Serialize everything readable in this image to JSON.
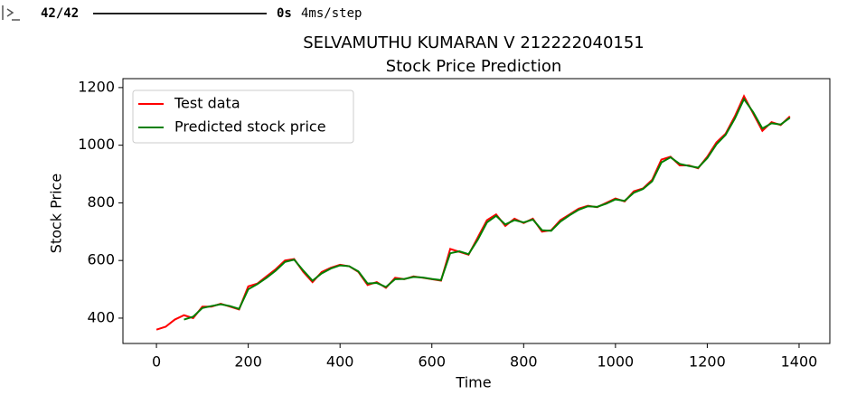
{
  "console": {
    "steps": "42/42",
    "time": "0s",
    "rate": "4ms/step"
  },
  "chart_data": {
    "type": "line",
    "title": "SELVAMUTHU KUMARAN V 212222040151",
    "subtitle": "Stock Price Prediction",
    "x_label": "Time",
    "y_label": "Stock Price",
    "x": [
      0,
      20,
      40,
      60,
      80,
      100,
      120,
      140,
      160,
      180,
      200,
      220,
      240,
      260,
      280,
      300,
      320,
      340,
      360,
      380,
      400,
      420,
      440,
      460,
      480,
      500,
      520,
      540,
      560,
      580,
      600,
      620,
      640,
      660,
      680,
      700,
      720,
      740,
      760,
      780,
      800,
      820,
      840,
      860,
      880,
      900,
      920,
      940,
      960,
      980,
      1000,
      1020,
      1040,
      1060,
      1080,
      1100,
      1120,
      1140,
      1160,
      1180,
      1200,
      1220,
      1240,
      1260,
      1280,
      1300,
      1320,
      1340,
      1360,
      1380
    ],
    "series": [
      {
        "name": "Test data",
        "color": "#ff0000",
        "values": [
          360,
          370,
          395,
          410,
          400,
          440,
          440,
          450,
          440,
          430,
          510,
          520,
          545,
          570,
          600,
          605,
          560,
          525,
          560,
          575,
          585,
          580,
          560,
          515,
          525,
          505,
          540,
          535,
          545,
          540,
          535,
          530,
          640,
          630,
          620,
          680,
          740,
          760,
          720,
          745,
          730,
          745,
          700,
          705,
          740,
          760,
          780,
          790,
          785,
          800,
          815,
          805,
          840,
          850,
          880,
          950,
          960,
          930,
          930,
          920,
          960,
          1010,
          1040,
          1100,
          1170,
          1110,
          1050,
          1080,
          1070,
          1100
        ]
      },
      {
        "name": "Predicted stock price",
        "color": "#008000",
        "values": [
          null,
          null,
          null,
          395,
          405,
          435,
          442,
          448,
          442,
          432,
          500,
          518,
          540,
          565,
          595,
          603,
          565,
          530,
          555,
          572,
          583,
          580,
          562,
          520,
          522,
          508,
          535,
          536,
          543,
          541,
          536,
          532,
          625,
          632,
          622,
          672,
          732,
          755,
          725,
          740,
          732,
          742,
          705,
          703,
          735,
          757,
          776,
          788,
          786,
          797,
          812,
          807,
          835,
          848,
          875,
          940,
          958,
          935,
          928,
          922,
          955,
          1003,
          1036,
          1092,
          1160,
          1115,
          1058,
          1076,
          1072,
          1095
        ]
      }
    ],
    "xlim": [
      -73,
      1467
    ],
    "ylim": [
      312,
      1231
    ],
    "xticks": [
      0,
      200,
      400,
      600,
      800,
      1000,
      1200,
      1400
    ],
    "yticks": [
      400,
      600,
      800,
      1000,
      1200
    ],
    "legend": "upper left"
  }
}
